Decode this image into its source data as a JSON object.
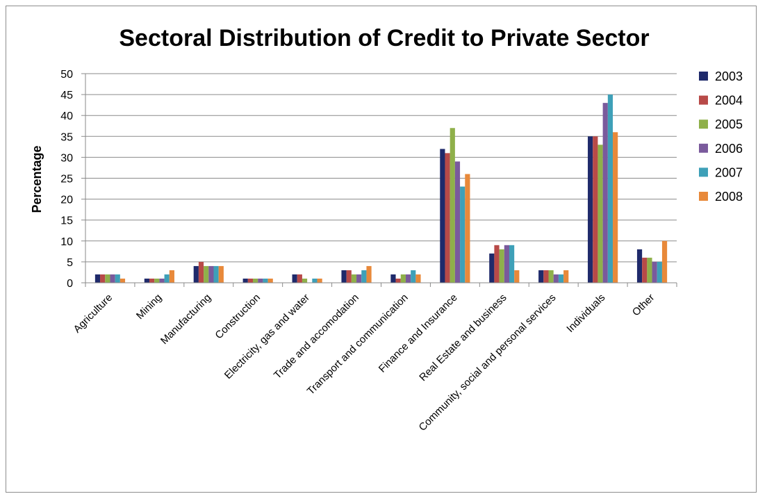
{
  "chart_data": {
    "type": "bar",
    "title": "Sectoral Distribution of Credit to Private Sector",
    "xlabel": "",
    "ylabel": "Percentage",
    "ylim": [
      0,
      50
    ],
    "yticks": [
      0,
      5,
      10,
      15,
      20,
      25,
      30,
      35,
      40,
      45,
      50
    ],
    "grid": "horizontal",
    "legend_position": "right",
    "categories": [
      "Agriculture",
      "Mining",
      "Manufacturing",
      "Construction",
      "Electricity, gas and water",
      "Trade and accomodation",
      "Transport and communication",
      "Finance and Insurance",
      "Real Estate and business",
      "Community, social and personal services",
      "Individuals",
      "Other"
    ],
    "series": [
      {
        "name": "2003",
        "color": "#1f2a6b",
        "values": [
          2,
          1,
          4,
          1,
          2,
          3,
          2,
          32,
          7,
          3,
          35,
          8
        ]
      },
      {
        "name": "2004",
        "color": "#b84a48",
        "values": [
          2,
          1,
          5,
          1,
          2,
          3,
          1,
          31,
          9,
          3,
          35,
          6
        ]
      },
      {
        "name": "2005",
        "color": "#8fb04a",
        "values": [
          2,
          1,
          4,
          1,
          1,
          2,
          2,
          37,
          8,
          3,
          33,
          6
        ]
      },
      {
        "name": "2006",
        "color": "#7a5a9c",
        "values": [
          2,
          1,
          4,
          1,
          0,
          2,
          2,
          29,
          9,
          2,
          43,
          5
        ]
      },
      {
        "name": "2007",
        "color": "#3ea0b8",
        "values": [
          2,
          2,
          4,
          1,
          1,
          3,
          3,
          23,
          9,
          2,
          45,
          5
        ]
      },
      {
        "name": "2008",
        "color": "#e8893a",
        "values": [
          1,
          3,
          4,
          1,
          1,
          4,
          2,
          26,
          3,
          3,
          36,
          10
        ]
      }
    ]
  }
}
